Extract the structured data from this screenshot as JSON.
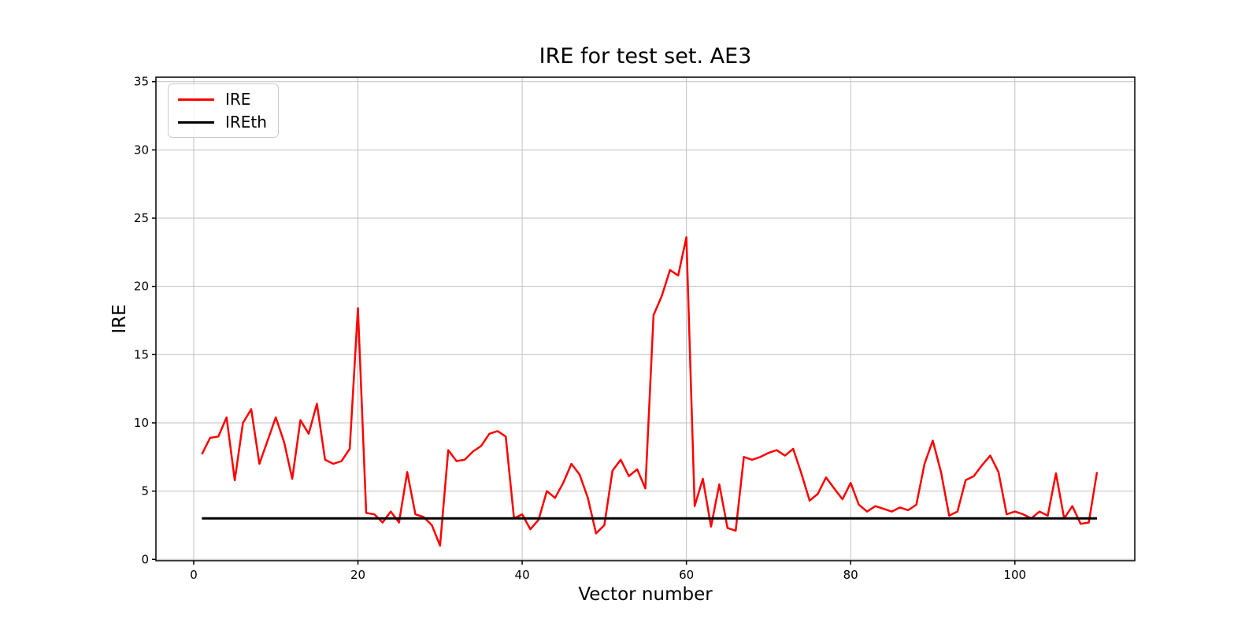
{
  "page": {
    "background": "#ffffff"
  },
  "chart_data": {
    "type": "line",
    "title": "IRE for test set. AE3",
    "xlabel": "Vector number",
    "ylabel": "IRE",
    "x_ticks": [
      0,
      20,
      40,
      60,
      80,
      100
    ],
    "y_ticks": [
      0,
      5,
      10,
      15,
      20,
      25,
      30,
      35
    ],
    "xlim": [
      -4.6,
      114.6
    ],
    "ylim": [
      -0.1,
      35.33
    ],
    "grid": true,
    "grid_color": "#c0c0c0",
    "legend": {
      "position": "upper left",
      "entries": [
        {
          "label": "IRE",
          "color": "#ff0000"
        },
        {
          "label": "IREth",
          "color": "#000000"
        }
      ]
    },
    "series": [
      {
        "name": "IRE",
        "color": "#ff0000",
        "x_start": 1,
        "values": [
          7.7,
          8.9,
          9.0,
          10.4,
          5.8,
          10.0,
          11.0,
          7.0,
          8.7,
          10.4,
          8.6,
          5.9,
          10.2,
          9.2,
          11.4,
          7.3,
          7.0,
          7.2,
          8.1,
          18.4,
          3.4,
          3.3,
          2.7,
          3.5,
          2.7,
          6.4,
          3.3,
          3.1,
          2.5,
          1.0,
          8.0,
          7.2,
          7.3,
          7.9,
          8.3,
          9.2,
          9.4,
          9.0,
          3.0,
          3.3,
          2.2,
          2.9,
          5.0,
          4.5,
          5.6,
          7.0,
          6.2,
          4.5,
          1.9,
          2.5,
          6.5,
          7.3,
          6.1,
          6.6,
          5.2,
          17.9,
          19.3,
          21.2,
          20.8,
          23.6,
          3.9,
          5.9,
          2.4,
          5.5,
          2.3,
          2.1,
          7.5,
          7.3,
          7.5,
          7.8,
          8.0,
          7.6,
          8.1,
          6.3,
          4.3,
          4.8,
          6.0,
          5.2,
          4.4,
          5.6,
          4.0,
          3.5,
          3.9,
          3.7,
          3.5,
          3.8,
          3.6,
          4.0,
          7.0,
          8.7,
          6.4,
          3.2,
          3.5,
          5.8,
          6.1,
          6.9,
          7.6,
          6.4,
          3.3,
          3.5,
          3.3,
          3.0,
          3.5,
          3.2,
          6.3,
          3.0,
          3.9,
          2.6,
          2.7,
          6.4
        ]
      },
      {
        "name": "IREth",
        "color": "#000000",
        "type": "threshold",
        "value": 3,
        "x_range": [
          1,
          110
        ]
      }
    ]
  }
}
